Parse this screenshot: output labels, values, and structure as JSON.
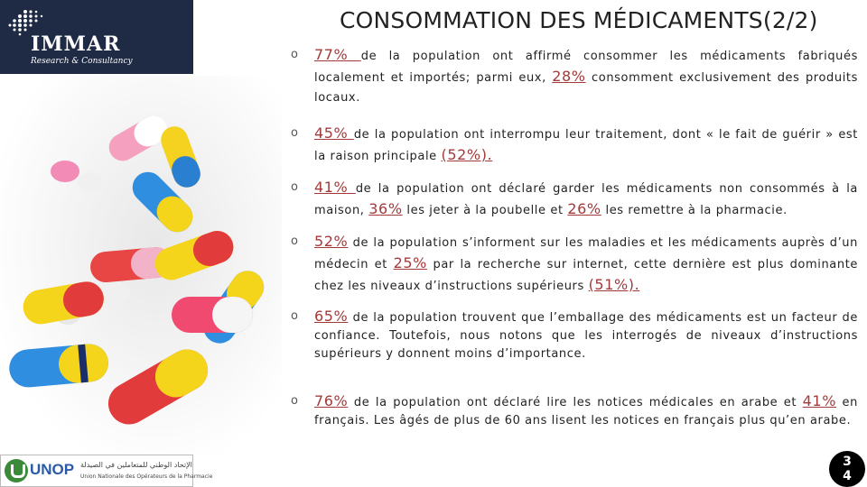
{
  "logo": {
    "name": "IMMAR",
    "tagline": "Research & Consultancy",
    "icon": "dots-grid-icon",
    "colors": {
      "bg": "#1f2a44",
      "text": "#ffffff"
    }
  },
  "title": "CONSOMMATION DES MÉDICAMENTS(2/2)",
  "image": {
    "icon": "pills-photo"
  },
  "bullets": [
    {
      "marker": "o",
      "highlight_1": "77% ",
      "text_1": " de la population ont affirmé consommer les médicaments fabriqués localement et importés; parmi eux, ",
      "highlight_2": "28%",
      "text_2": " consomment exclusivement des produits locaux."
    },
    {
      "marker": "o",
      "highlight_1": "45% ",
      "text_1": "de la population ont interrompu leur traitement, dont « le fait de guérir » est la raison principale ",
      "highlight_2": "(52%).",
      "text_2": ""
    },
    {
      "marker": "o",
      "highlight_1": "41% ",
      "text_1": "de la population ont déclaré garder les médicaments non consommés à la maison, ",
      "highlight_2": "36%",
      "text_2": " les jeter à la poubelle et ",
      "highlight_3": "26%",
      "text_3": " les remettre à la pharmacie."
    },
    {
      "marker": "o",
      "highlight_1": "52%",
      "text_1": " de la population s’informent sur les maladies et les médicaments auprès d’un médecin et ",
      "highlight_2": "25%",
      "text_2": " par la recherche sur internet, cette dernière est plus dominante chez les niveaux d’instructions supérieurs ",
      "highlight_3": "(51%).",
      "text_3": ""
    },
    {
      "marker": "o",
      "highlight_1": "65%",
      "text_1": " de la population trouvent que l’emballage des médicaments est un facteur de confiance. Toutefois, nous notons que les interrogés de niveaux d’instructions supérieurs y donnent moins d’importance.",
      "highlight_2": "",
      "text_2": ""
    },
    {
      "marker": "o",
      "highlight_1": "76%",
      "text_1": " de la population ont déclaré lire les notices médicales en arabe et ",
      "highlight_2": "41%",
      "text_2": " en français. Les âgés de plus de 60 ans lisent les notices en français plus qu’en arabe."
    }
  ],
  "unop_logo": {
    "name": "UNOP",
    "arabic": "الإتحاد الوطني للمتعاملين في الصيدلة",
    "french": "Union Nationale des Opérateurs de la Pharmacie",
    "icon": "unop-emblem-icon"
  },
  "page": {
    "number": "3\n4"
  },
  "colors": {
    "highlight": "#a33a3a"
  }
}
